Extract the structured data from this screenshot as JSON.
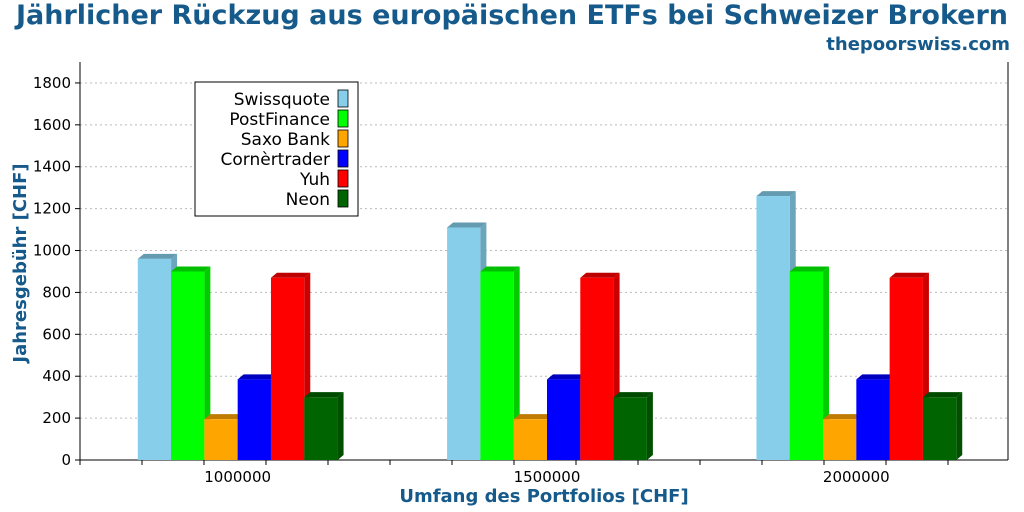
{
  "title": "Jährlicher Rückzug aus europäischen ETFs bei Schweizer Brokern",
  "source": "thepoorswiss.com",
  "chart_data": {
    "type": "bar",
    "style": "3d-grouped",
    "xlabel": "Umfang des Portfolios [CHF]",
    "ylabel": "Jahresgebühr [CHF]",
    "categories": [
      "1000000",
      "1500000",
      "2000000"
    ],
    "ylim": [
      0,
      1900
    ],
    "yticks": [
      0,
      200,
      400,
      600,
      800,
      1000,
      1200,
      1400,
      1600,
      1800
    ],
    "grid": "horizontal dotted",
    "legend": "top-left",
    "series": [
      {
        "name": "Swissquote",
        "color": "#87ceeb",
        "values": [
          960,
          1110,
          1260
        ]
      },
      {
        "name": "PostFinance",
        "color": "#00ff00",
        "values": [
          900,
          900,
          900
        ]
      },
      {
        "name": "Saxo Bank",
        "color": "#ffa500",
        "values": [
          195,
          195,
          195
        ]
      },
      {
        "name": "Cornèrtrader",
        "color": "#0000ff",
        "values": [
          385,
          385,
          385
        ]
      },
      {
        "name": "Yuh",
        "color": "#ff0000",
        "values": [
          870,
          870,
          870
        ]
      },
      {
        "name": "Neon",
        "color": "#006400",
        "values": [
          300,
          300,
          300
        ]
      }
    ]
  }
}
